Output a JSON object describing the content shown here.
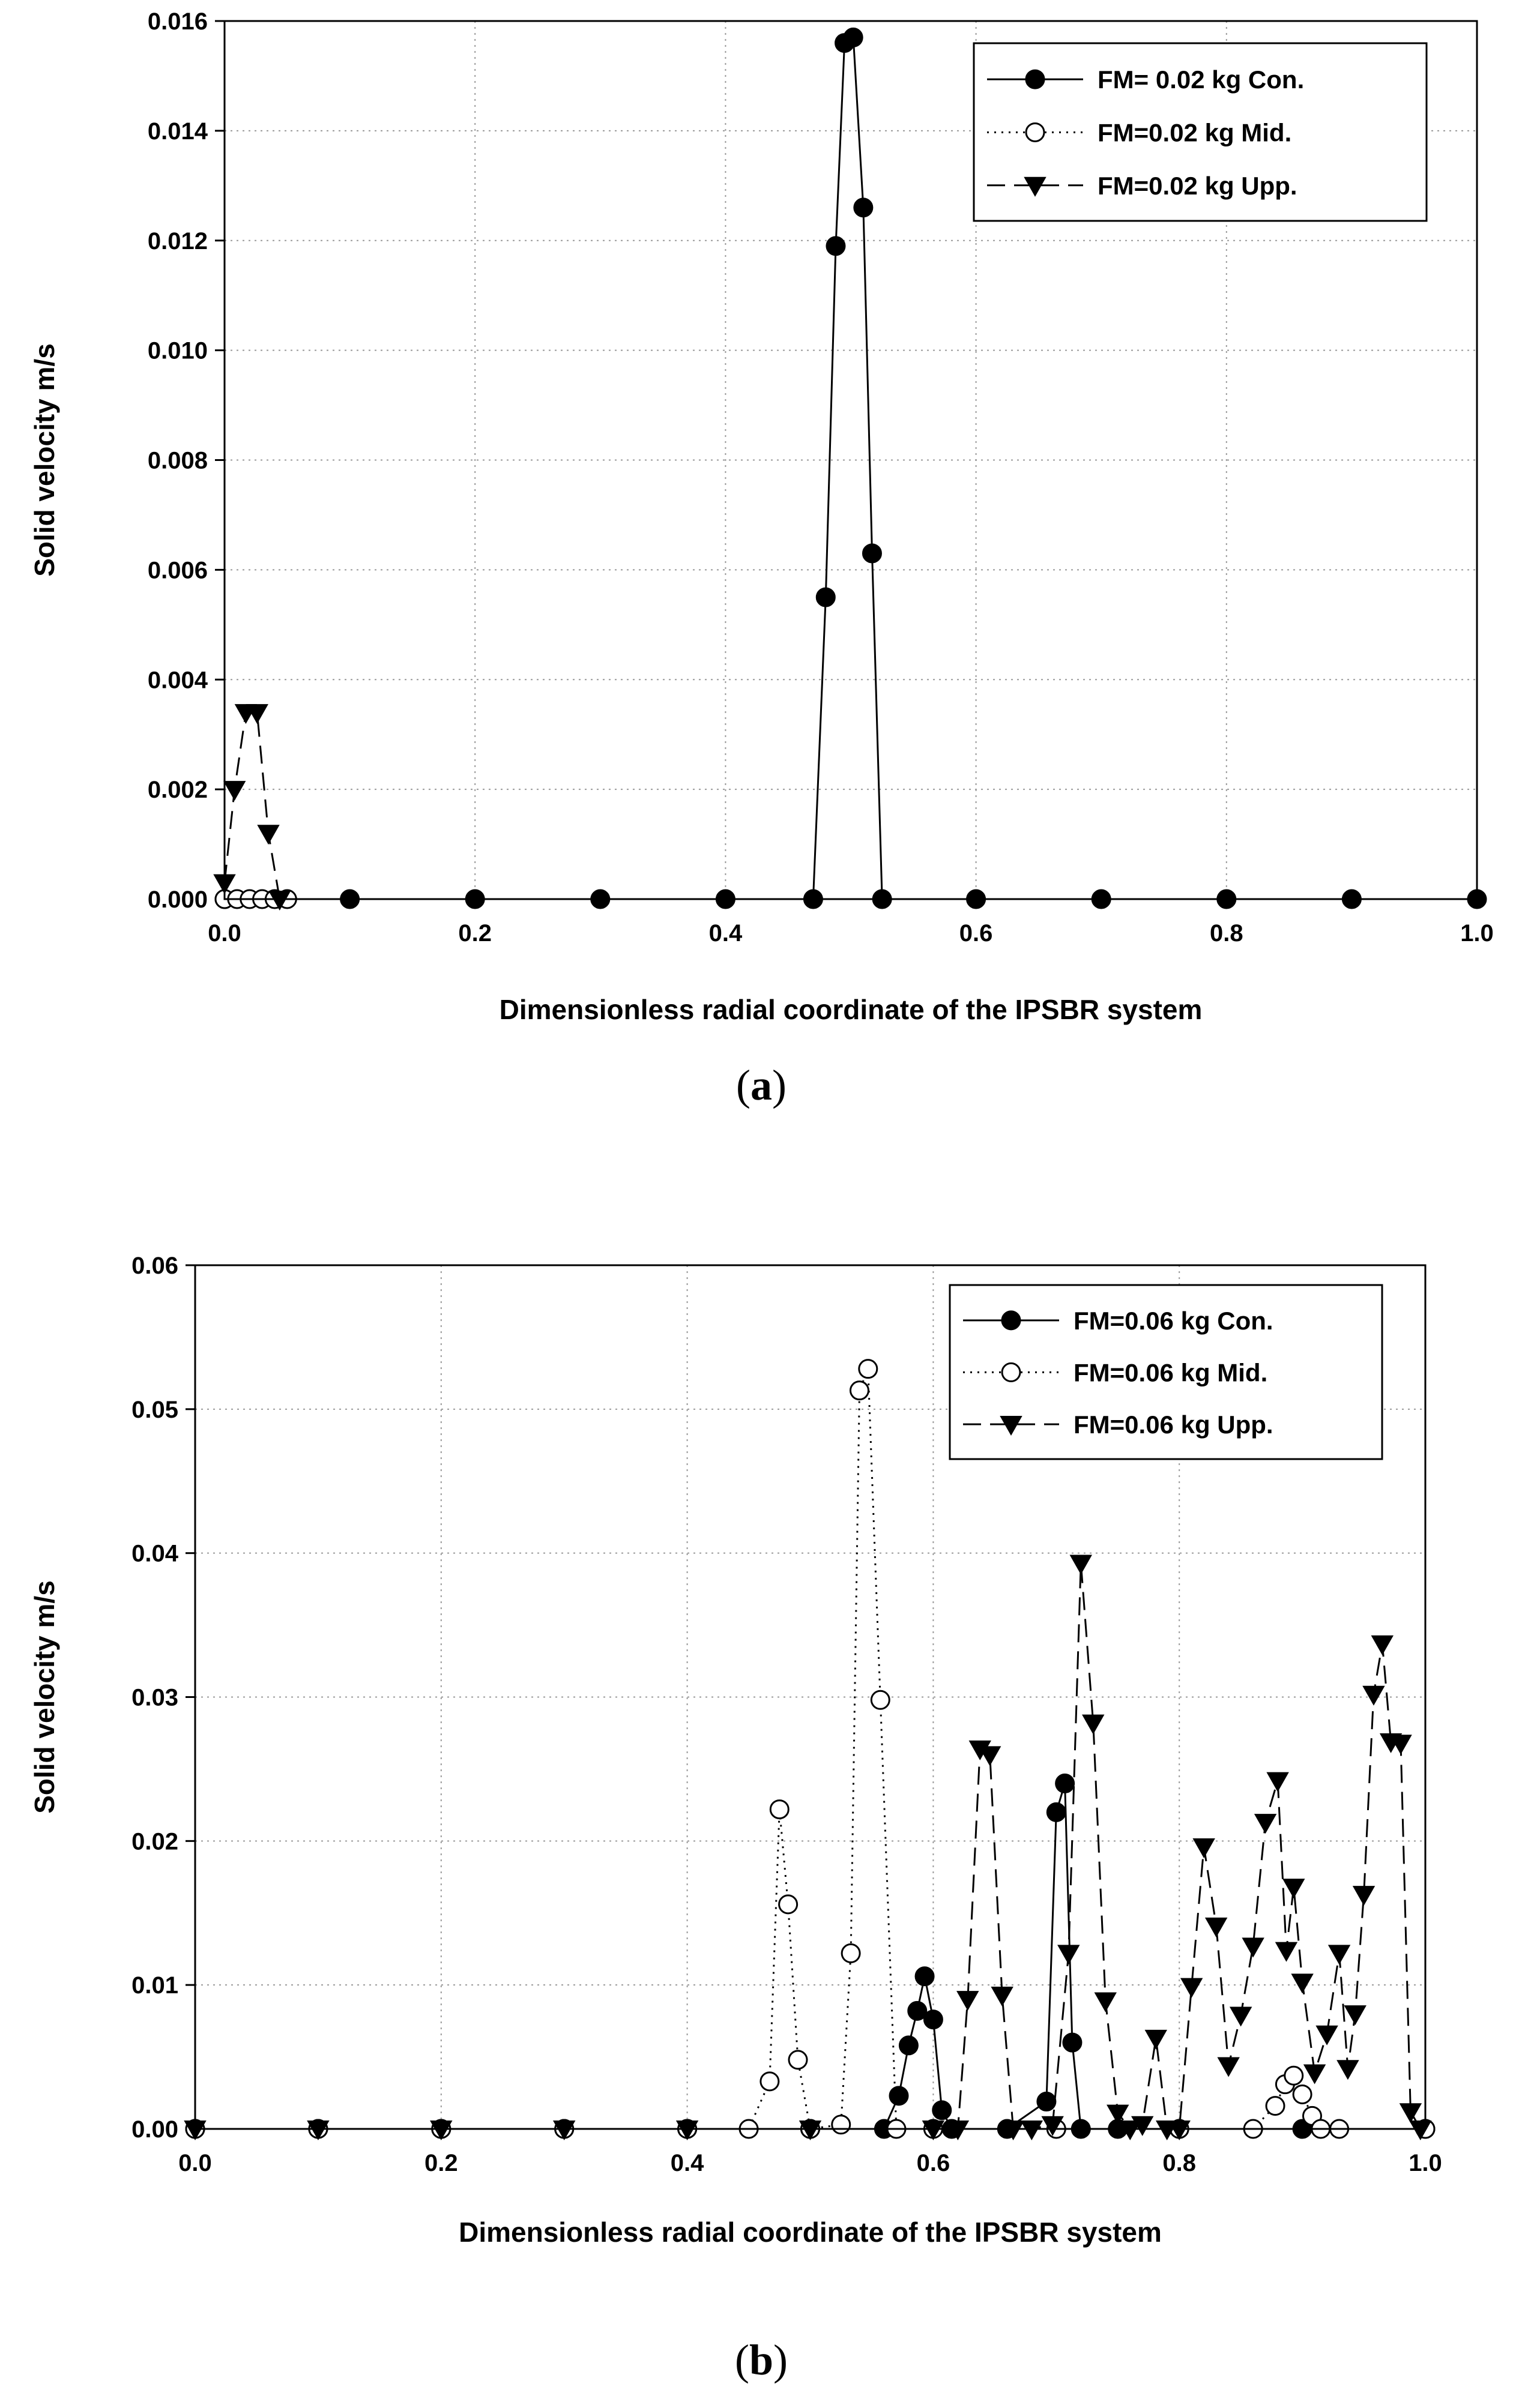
{
  "chart_data": [
    {
      "type": "line",
      "panel_label": "(a)",
      "panel_letter": "a",
      "xlabel": "Dimensionless radial coordinate of the IPSBR system",
      "ylabel": "Solid velocity m/s",
      "xlim": [
        0,
        1
      ],
      "ylim": [
        0,
        0.016
      ],
      "xticks": [
        "0.0",
        "0.2",
        "0.4",
        "0.6",
        "0.8",
        "1.0"
      ],
      "yticks": [
        "0.000",
        "0.002",
        "0.004",
        "0.006",
        "0.008",
        "0.010",
        "0.012",
        "0.014",
        "0.016"
      ],
      "grid": true,
      "legend_position": "top-right",
      "series": [
        {
          "name": "FM= 0.02 kg Con.",
          "marker": "circle-filled",
          "line": "solid",
          "x": [
            0.0,
            0.1,
            0.2,
            0.3,
            0.4,
            0.47,
            0.48,
            0.488,
            0.495,
            0.502,
            0.51,
            0.517,
            0.525,
            0.6,
            0.7,
            0.8,
            0.9,
            1.0
          ],
          "y": [
            0,
            0,
            0,
            0,
            0,
            0,
            0.0055,
            0.0119,
            0.0156,
            0.0157,
            0.0126,
            0.0063,
            0,
            0,
            0,
            0,
            0,
            0
          ]
        },
        {
          "name": "FM=0.02 kg Mid.",
          "marker": "circle-open",
          "line": "dotted",
          "x": [
            0.0,
            0.01,
            0.02,
            0.03,
            0.04,
            0.05
          ],
          "y": [
            0,
            0,
            0,
            0,
            0,
            0
          ]
        },
        {
          "name": "FM=0.02 kg Upp.",
          "marker": "triangle-down",
          "line": "dashed",
          "x": [
            0.0,
            0.008,
            0.017,
            0.026,
            0.035,
            0.044
          ],
          "y": [
            0.0003,
            0.002,
            0.0034,
            0.0034,
            0.0012,
            0
          ]
        }
      ]
    },
    {
      "type": "line",
      "panel_label": "(b)",
      "panel_letter": "b",
      "xlabel": "Dimensionless radial coordinate of the IPSBR system",
      "ylabel": "Solid velocity m/s",
      "xlim": [
        0,
        1
      ],
      "ylim": [
        0,
        0.06
      ],
      "xticks": [
        "0.0",
        "0.2",
        "0.4",
        "0.6",
        "0.8",
        "1.0"
      ],
      "yticks": [
        "0.00",
        "0.01",
        "0.02",
        "0.03",
        "0.04",
        "0.05",
        "0.06"
      ],
      "grid": true,
      "legend_position": "top-right",
      "series": [
        {
          "name": "FM=0.06 kg Con.",
          "marker": "circle-filled",
          "line": "solid",
          "x": [
            0.0,
            0.1,
            0.2,
            0.3,
            0.4,
            0.5,
            0.56,
            0.572,
            0.58,
            0.587,
            0.593,
            0.6,
            0.607,
            0.615,
            0.66,
            0.692,
            0.7,
            0.707,
            0.713,
            0.72,
            0.75,
            0.8,
            0.9,
            1.0
          ],
          "y": [
            0,
            0,
            0,
            0,
            0,
            0,
            0,
            0.0023,
            0.0058,
            0.0082,
            0.0106,
            0.0076,
            0.0013,
            0,
            0,
            0.0019,
            0.022,
            0.024,
            0.006,
            0,
            0,
            0,
            0,
            0
          ]
        },
        {
          "name": "FM=0.06 kg Mid.",
          "marker": "circle-open",
          "line": "dotted",
          "x": [
            0.0,
            0.1,
            0.2,
            0.3,
            0.4,
            0.45,
            0.467,
            0.475,
            0.482,
            0.49,
            0.5,
            0.525,
            0.533,
            0.54,
            0.547,
            0.557,
            0.57,
            0.6,
            0.7,
            0.8,
            0.86,
            0.878,
            0.886,
            0.893,
            0.9,
            0.908,
            0.915,
            0.93,
            1.0
          ],
          "y": [
            0,
            0,
            0,
            0,
            0,
            0,
            0.0033,
            0.0222,
            0.0156,
            0.0048,
            0,
            0.0003,
            0.0122,
            0.0513,
            0.0528,
            0.0298,
            0,
            0,
            0,
            0,
            0,
            0.0016,
            0.0031,
            0.0037,
            0.0024,
            0.0009,
            0,
            0,
            0
          ]
        },
        {
          "name": "FM=0.06 kg Upp.",
          "marker": "triangle-down",
          "line": "dashed",
          "x": [
            0.0,
            0.1,
            0.2,
            0.3,
            0.4,
            0.5,
            0.6,
            0.62,
            0.628,
            0.638,
            0.646,
            0.656,
            0.665,
            0.68,
            0.697,
            0.71,
            0.72,
            0.73,
            0.74,
            0.75,
            0.76,
            0.77,
            0.781,
            0.79,
            0.8,
            0.81,
            0.82,
            0.83,
            0.84,
            0.85,
            0.86,
            0.87,
            0.88,
            0.887,
            0.893,
            0.9,
            0.91,
            0.92,
            0.93,
            0.937,
            0.943,
            0.95,
            0.958,
            0.965,
            0.972,
            0.98,
            0.988,
            0.996
          ],
          "y": [
            0,
            0,
            0,
            0,
            0,
            0,
            0,
            0,
            0.009,
            0.0264,
            0.026,
            0.0093,
            0,
            0,
            0.0003,
            0.0122,
            0.0393,
            0.0282,
            0.0089,
            0.0011,
            0,
            0.0003,
            0.0063,
            0,
            0,
            0.0099,
            0.0196,
            0.0141,
            0.0044,
            0.0079,
            0.0127,
            0.0213,
            0.0242,
            0.0124,
            0.0168,
            0.0102,
            0.0039,
            0.0066,
            0.0122,
            0.0042,
            0.008,
            0.0163,
            0.0302,
            0.0337,
            0.0269,
            0.0268,
            0.0012,
            0
          ]
        }
      ]
    }
  ]
}
